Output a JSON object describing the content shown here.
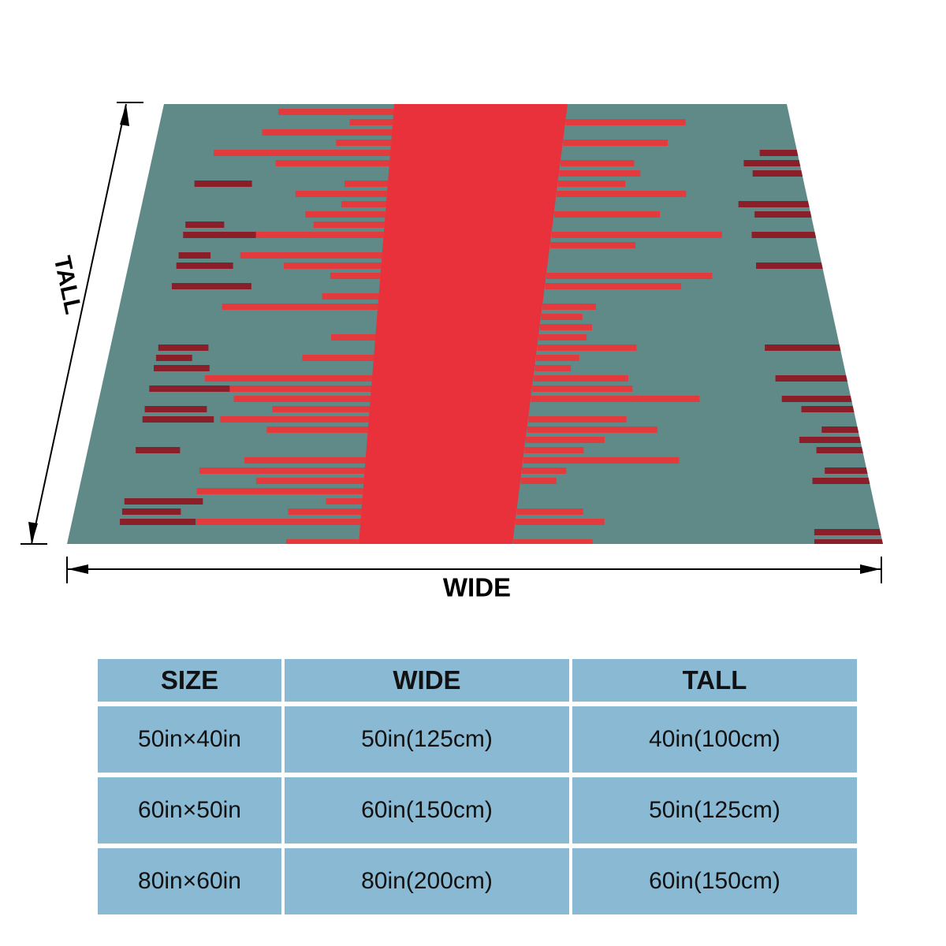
{
  "dimension_labels": {
    "tall": "TALL",
    "wide": "WIDE"
  },
  "table": {
    "header": [
      "SIZE",
      "WIDE",
      "TALL"
    ],
    "rows": [
      [
        "50in×40in",
        "50in(125cm)",
        "40in(100cm)"
      ],
      [
        "60in×50in",
        "60in(150cm)",
        "50in(125cm)"
      ],
      [
        "80in×60in",
        "80in(200cm)",
        "60in(150cm)"
      ]
    ]
  }
}
